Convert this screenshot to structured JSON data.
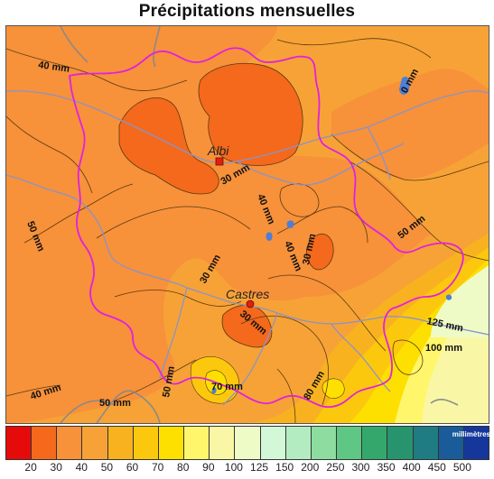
{
  "title": "Précipitations mensuelles",
  "legend": {
    "unit": "millimètres",
    "colors": [
      "#e60b0b",
      "#f4691c",
      "#f7913a",
      "#f7a236",
      "#f9b21f",
      "#fcc80e",
      "#fde000",
      "#fff66b",
      "#f9f7a6",
      "#eefbc6",
      "#d2f8d8",
      "#b4ecc2",
      "#8ddca0",
      "#5dc783",
      "#34a86c",
      "#27946d",
      "#1f7c82",
      "#1a5c9a",
      "#15379c"
    ],
    "ticks": [
      "20",
      "30",
      "40",
      "50",
      "60",
      "70",
      "80",
      "90",
      "100",
      "125",
      "150",
      "200",
      "250",
      "300",
      "350",
      "400",
      "450",
      "500"
    ]
  },
  "cities": [
    {
      "name": "Albi",
      "marker_color": "#e0200e"
    },
    {
      "name": "Castres",
      "marker_color": "#e0200e"
    }
  ],
  "contour_labels": [
    {
      "text": "40 mm"
    },
    {
      "text": "0 mm"
    },
    {
      "text": "50 mm"
    },
    {
      "text": "30 mm"
    },
    {
      "text": "40 mm"
    },
    {
      "text": "40 mm"
    },
    {
      "text": "30 mm"
    },
    {
      "text": "50 mm"
    },
    {
      "text": "30 mm"
    },
    {
      "text": "30 mm"
    },
    {
      "text": "125 mm"
    },
    {
      "text": "100 mm"
    },
    {
      "text": "50 mm"
    },
    {
      "text": "70 mm"
    },
    {
      "text": "80 mm"
    },
    {
      "text": "40 mm"
    },
    {
      "text": "50 mm"
    }
  ],
  "colors": {
    "department_border": "#e020e0",
    "rivers": "#8a93c8",
    "lakes": "#4d7fd6",
    "neighbour_border": "#8a8a8a",
    "contour_line": "#5a3a10"
  }
}
